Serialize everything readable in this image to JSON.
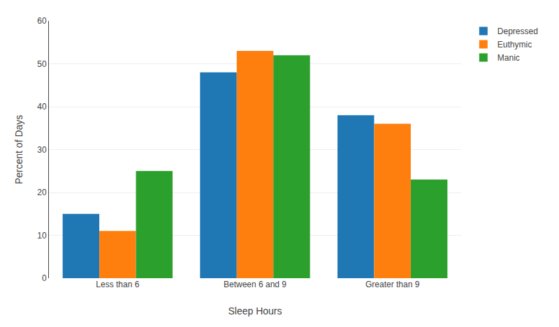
{
  "chart_data": {
    "type": "bar",
    "categories": [
      "Less than 6",
      "Between 6 and 9",
      "Greater than 9"
    ],
    "series": [
      {
        "name": "Depressed",
        "values": [
          15,
          48,
          38
        ]
      },
      {
        "name": "Euthymic",
        "values": [
          11,
          53,
          36
        ]
      },
      {
        "name": "Manic",
        "values": [
          25,
          52,
          23
        ]
      }
    ],
    "xlabel": "Sleep Hours",
    "ylabel": "Percent of Days",
    "ylim": [
      0,
      60
    ],
    "yticks": [
      0,
      10,
      20,
      30,
      40,
      50,
      60
    ],
    "grid": true,
    "legend": "right"
  }
}
